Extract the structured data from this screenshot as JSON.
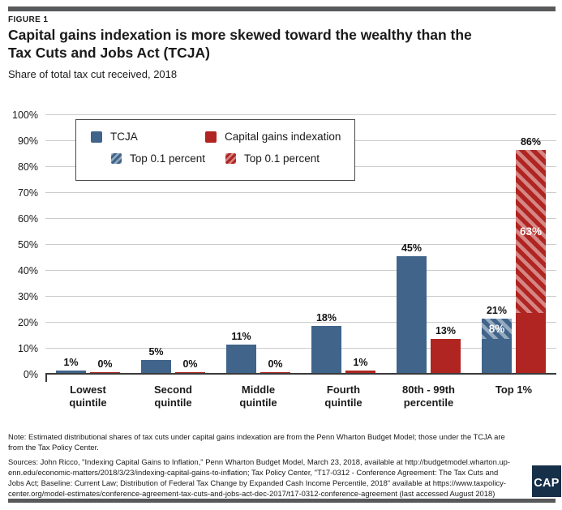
{
  "header": {
    "kicker": "FIGURE 1",
    "title": "Capital gains indexation is more skewed toward the wealthy than the\nTax Cuts and Jobs Act (TCJA)",
    "subtitle": "Share of total tax cut received, 2018"
  },
  "legend": {
    "items": [
      {
        "label": "TCJA",
        "swatch": "solid-blue"
      },
      {
        "label": "Capital gains indexation",
        "swatch": "solid-red"
      },
      {
        "label": "Top 0.1 percent",
        "swatch": "hatch-blue"
      },
      {
        "label": "Top 0.1 percent",
        "swatch": "hatch-red"
      }
    ]
  },
  "chart_data": {
    "type": "bar",
    "title": "Capital gains indexation is more skewed toward the wealthy than the Tax Cuts and Jobs Act (TCJA)",
    "subtitle": "Share of total tax cut received, 2018",
    "categories": [
      "Lowest\nquintile",
      "Second\nquintile",
      "Middle\nquintile",
      "Fourth\nquintile",
      "80th - 99th\npercentile",
      "Top 1%"
    ],
    "series": [
      {
        "name": "TCJA",
        "color_key": "tcja",
        "values": [
          1,
          5,
          11,
          18,
          45,
          21
        ],
        "hatch_name": "Top 0.1 percent",
        "hatch_values": [
          null,
          null,
          null,
          null,
          null,
          8
        ]
      },
      {
        "name": "Capital gains indexation",
        "color_key": "cgi",
        "values": [
          0,
          0,
          0,
          1,
          13,
          86
        ],
        "hatch_name": "Top 0.1 percent",
        "hatch_values": [
          null,
          null,
          null,
          null,
          null,
          63
        ]
      }
    ],
    "value_label_suffix": "%",
    "yticks": [
      0,
      10,
      20,
      30,
      40,
      50,
      60,
      70,
      80,
      90,
      100
    ],
    "ytick_suffix": "%",
    "ylim": [
      0,
      100
    ],
    "grid": true,
    "legend_position": "top-left-inside"
  },
  "colors": {
    "tcja": "#40648A",
    "cgi": "#B02521",
    "stripe": "rgba(255,255,255,0.45)",
    "grid": "#CCCCCC",
    "axis": "#3A3A3A",
    "rule": "#58595B",
    "logobg": "#173049",
    "ink": "#1A1A1A"
  },
  "footer": {
    "note": "Note: Estimated distributional shares of tax cuts under capital gains indexation are from the Penn Wharton Budget Model; those under the TCJA are\nfrom the Tax Policy Center.",
    "sources": "Sources: John Ricco, \"Indexing Capital Gains to Inflation,\" Penn Wharton Budget Model, March 23, 2018, available at http://budgetmodel.wharton.up-\nenn.edu/economic-matters/2018/3/23/indexing-capital-gains-to-inflation; Tax Policy Center, \"T17-0312 - Conference Agreement: The Tax Cuts and\nJobs Act; Baseline: Current Law; Distribution of Federal Tax Change by Expanded Cash Income Percentile, 2018\" available at https://www.taxpolicy-\ncenter.org/model-estimates/conference-agreement-tax-cuts-and-jobs-act-dec-2017/t17-0312-conference-agreement (last accessed August 2018)",
    "logo_text": "CAP"
  }
}
